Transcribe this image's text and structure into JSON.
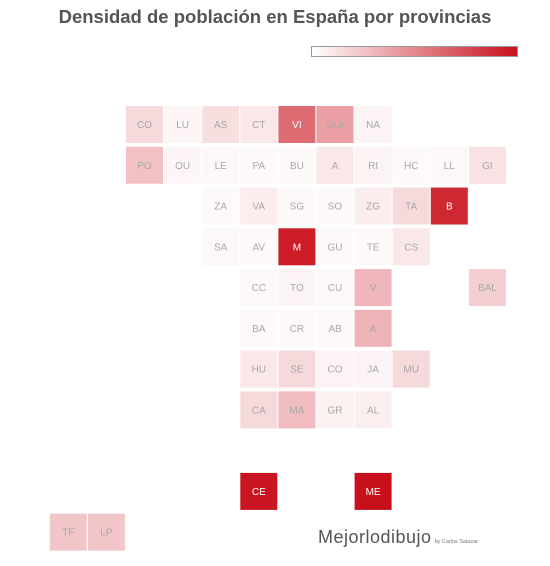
{
  "chart_data": {
    "type": "heatmap",
    "title": "Densidad de población en España por provincias",
    "color_scale": {
      "low": "#ffffff",
      "high": "#c8101c"
    },
    "provinces": [
      {
        "label": "CO",
        "row": 0,
        "col": 0,
        "value": 0.16
      },
      {
        "label": "LU",
        "row": 0,
        "col": 1,
        "value": 0.04
      },
      {
        "label": "AS",
        "row": 0,
        "col": 2,
        "value": 0.14
      },
      {
        "label": "CT",
        "row": 0,
        "col": 3,
        "value": 0.1
      },
      {
        "label": "VI",
        "row": 0,
        "col": 4,
        "value": 0.62
      },
      {
        "label": "GUI",
        "row": 0,
        "col": 5,
        "value": 0.4
      },
      {
        "label": "NA",
        "row": 0,
        "col": 6,
        "value": 0.05
      },
      {
        "label": "PO",
        "row": 1,
        "col": 0,
        "value": 0.26
      },
      {
        "label": "OU",
        "row": 1,
        "col": 1,
        "value": 0.04
      },
      {
        "label": "LE",
        "row": 1,
        "col": 2,
        "value": 0.03
      },
      {
        "label": "PA",
        "row": 1,
        "col": 3,
        "value": 0.02
      },
      {
        "label": "BU",
        "row": 1,
        "col": 4,
        "value": 0.02
      },
      {
        "label": "A",
        "row": 1,
        "col": 5,
        "value": 0.1
      },
      {
        "label": "RI",
        "row": 1,
        "col": 6,
        "value": 0.05
      },
      {
        "label": "HC",
        "row": 1,
        "col": 7,
        "value": 0.02
      },
      {
        "label": "LL",
        "row": 1,
        "col": 8,
        "value": 0.03
      },
      {
        "label": "GI",
        "row": 1,
        "col": 9,
        "value": 0.12
      },
      {
        "label": "ZA",
        "row": 2,
        "col": 2,
        "value": 0.02
      },
      {
        "label": "VA",
        "row": 2,
        "col": 3,
        "value": 0.08
      },
      {
        "label": "SG",
        "row": 2,
        "col": 4,
        "value": 0.02
      },
      {
        "label": "SO",
        "row": 2,
        "col": 5,
        "value": 0.01
      },
      {
        "label": "ZG",
        "row": 2,
        "col": 6,
        "value": 0.08
      },
      {
        "label": "TA",
        "row": 2,
        "col": 7,
        "value": 0.16
      },
      {
        "label": "B",
        "row": 2,
        "col": 8,
        "value": 0.9
      },
      {
        "label": "SA",
        "row": 3,
        "col": 2,
        "value": 0.03
      },
      {
        "label": "AV",
        "row": 3,
        "col": 3,
        "value": 0.02
      },
      {
        "label": "M",
        "row": 3,
        "col": 4,
        "value": 0.95
      },
      {
        "label": "GU",
        "row": 3,
        "col": 5,
        "value": 0.02
      },
      {
        "label": "TE",
        "row": 3,
        "col": 6,
        "value": 0.01
      },
      {
        "label": "CS",
        "row": 3,
        "col": 7,
        "value": 0.1
      },
      {
        "label": "CC",
        "row": 4,
        "col": 3,
        "value": 0.02
      },
      {
        "label": "TO",
        "row": 4,
        "col": 4,
        "value": 0.05
      },
      {
        "label": "CU",
        "row": 4,
        "col": 5,
        "value": 0.01
      },
      {
        "label": "V",
        "row": 4,
        "col": 6,
        "value": 0.3
      },
      {
        "label": "BAL",
        "row": 4,
        "col": 9,
        "value": 0.2
      },
      {
        "label": "BA",
        "row": 5,
        "col": 3,
        "value": 0.02
      },
      {
        "label": "CR",
        "row": 5,
        "col": 4,
        "value": 0.02
      },
      {
        "label": "AB",
        "row": 5,
        "col": 5,
        "value": 0.02
      },
      {
        "label": "A",
        "row": 5,
        "col": 6,
        "value": 0.32
      },
      {
        "label": "HU",
        "row": 6,
        "col": 3,
        "value": 0.1
      },
      {
        "label": "SE",
        "row": 6,
        "col": 4,
        "value": 0.16
      },
      {
        "label": "CO",
        "row": 6,
        "col": 5,
        "value": 0.05
      },
      {
        "label": "JA",
        "row": 6,
        "col": 6,
        "value": 0.05
      },
      {
        "label": "MU",
        "row": 6,
        "col": 7,
        "value": 0.16
      },
      {
        "label": "CA",
        "row": 7,
        "col": 3,
        "value": 0.16
      },
      {
        "label": "MA",
        "row": 7,
        "col": 4,
        "value": 0.28
      },
      {
        "label": "GR",
        "row": 7,
        "col": 5,
        "value": 0.06
      },
      {
        "label": "AL",
        "row": 7,
        "col": 6,
        "value": 0.07
      },
      {
        "label": "CE",
        "row": 9,
        "col": 3,
        "value": 0.98
      },
      {
        "label": "ME",
        "row": 9,
        "col": 6,
        "value": 1.0
      },
      {
        "label": "TF",
        "row": 10,
        "col": -2,
        "value": 0.24
      },
      {
        "label": "LP",
        "row": 10,
        "col": -1,
        "value": 0.24
      }
    ]
  },
  "brand": {
    "name": "Mejorlodibujo",
    "byline": "by Carlos Salazar"
  }
}
